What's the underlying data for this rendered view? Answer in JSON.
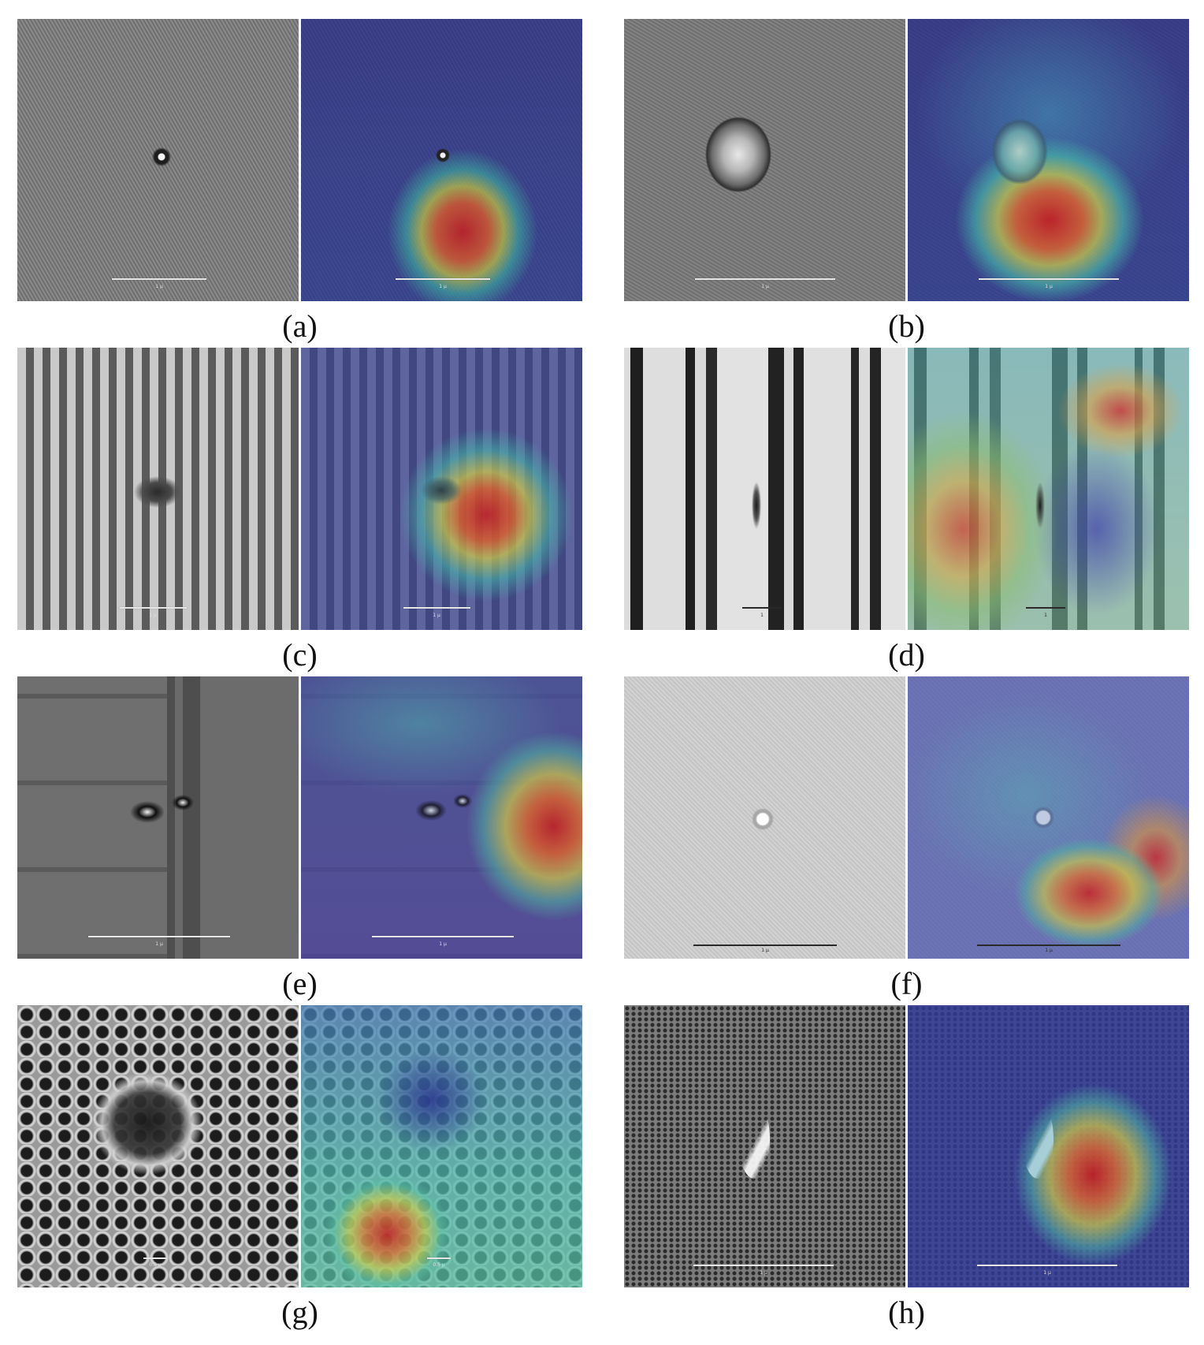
{
  "panels": [
    {
      "id": "a",
      "label": "(a)",
      "scale_text": "1 µ"
    },
    {
      "id": "b",
      "label": "(b)",
      "scale_text": "1 µ"
    },
    {
      "id": "c",
      "label": "(c)",
      "scale_text": "1 µ"
    },
    {
      "id": "d",
      "label": "(d)",
      "scale_text": "1"
    },
    {
      "id": "e",
      "label": "(e)",
      "scale_text": "1 µ"
    },
    {
      "id": "f",
      "label": "(f)",
      "scale_text": "1 µ"
    },
    {
      "id": "g",
      "label": "(g)",
      "scale_text": "0.5 µ"
    },
    {
      "id": "h",
      "label": "(h)",
      "scale_text": "1 µ"
    }
  ],
  "colors": {
    "heatmap_low": "#2b2f8f",
    "heatmap_mid": "#36b0a0",
    "heatmap_high": "#d42a2a",
    "sem_gray": "#7a7a7a"
  }
}
